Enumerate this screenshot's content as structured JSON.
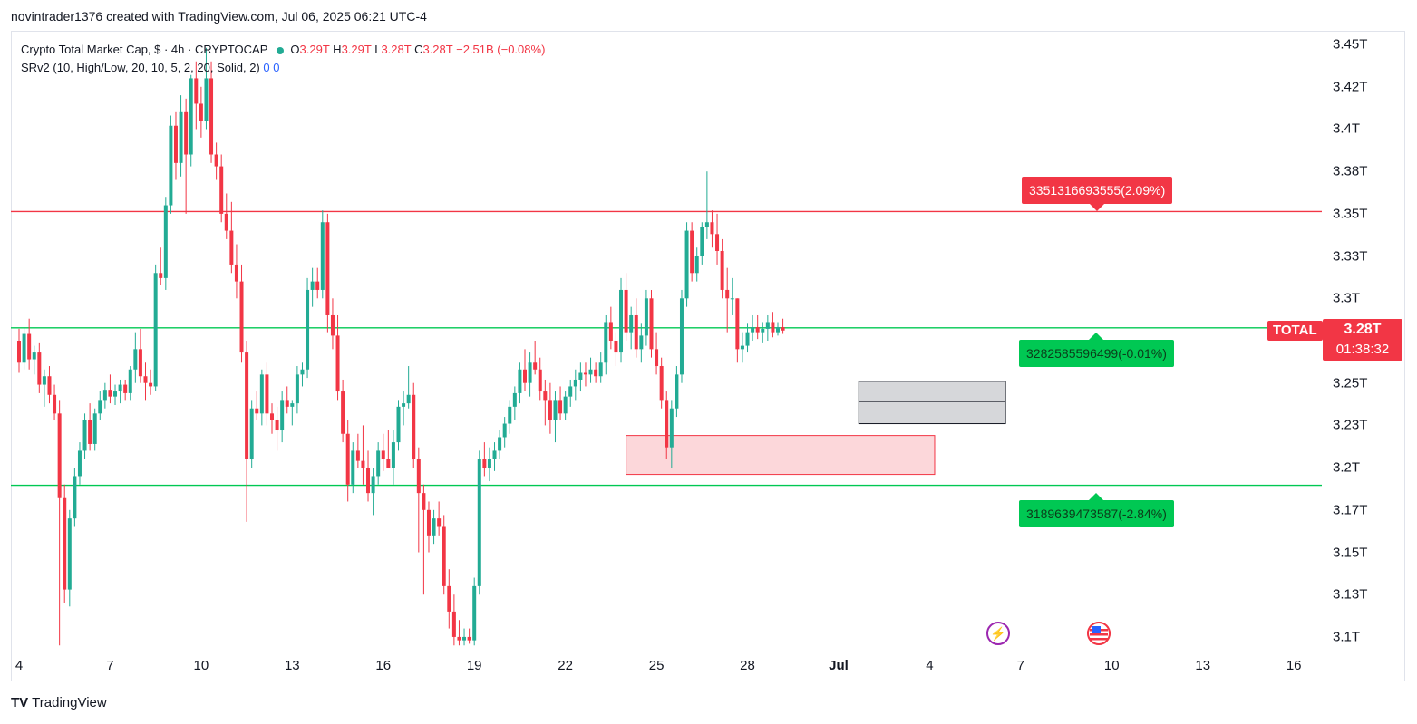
{
  "header": {
    "caption": "novintrader1376 created with TradingView.com, Jul 06, 2025 06:21 UTC-4"
  },
  "legend": {
    "symbol": "Crypto Total Market Cap, $ · 4h · CRYPTOCAP",
    "o_label": "O",
    "o_value": "3.29T",
    "h_label": "H",
    "h_value": "3.29T",
    "l_label": "L",
    "l_value": "3.28T",
    "c_label": "C",
    "c_value": "3.28T",
    "change": "−2.51B (−0.08%)",
    "indicator": "SRv2 (10, High/Low, 20, 10, 5, 2, 20, Solid, 2)",
    "indicator_v1": "0",
    "indicator_v2": "0"
  },
  "price_tag": {
    "symbol": "TOTAL",
    "value": "3.28T",
    "countdown": "01:38:32"
  },
  "levels": {
    "resistance_label": "3351316693555(2.09%)",
    "current_label": "3282585596499(-0.01%)",
    "support_label": "3189639473587(-2.84%)"
  },
  "footer": {
    "logo": "TV",
    "brand": "TradingView"
  },
  "icons": [
    "lightning-icon",
    "us-flag-icon"
  ],
  "colors": {
    "up": "#22ab94",
    "down": "#f23645",
    "resistance": "#f23645",
    "support": "#00c853"
  },
  "chart_data": {
    "type": "candlestick",
    "title": "Crypto Total Market Cap, $ · 4h · CRYPTOCAP",
    "y_unit": "T",
    "ylim": [
      3.093,
      3.457
    ],
    "y_ticks": [
      "3.45T",
      "3.42T",
      "3.4T",
      "3.38T",
      "3.35T",
      "3.33T",
      "3.3T",
      "3.28T",
      "3.25T",
      "3.23T",
      "3.2T",
      "3.17T",
      "3.15T",
      "3.13T",
      "3.1T"
    ],
    "y_tick_values": [
      3.45,
      3.425,
      3.4,
      3.375,
      3.35,
      3.325,
      3.3,
      3.275,
      3.25,
      3.225,
      3.2,
      3.175,
      3.15,
      3.125,
      3.1
    ],
    "x_ticks": [
      "4",
      "7",
      "10",
      "13",
      "16",
      "19",
      "22",
      "25",
      "28",
      "Jul",
      "4",
      "7",
      "10",
      "13",
      "16"
    ],
    "x_tick_bars": [
      0,
      18,
      36,
      54,
      72,
      90,
      108,
      126,
      144,
      162,
      180,
      198,
      216,
      234,
      252
    ],
    "horizontal_levels": [
      {
        "value": 3.3513,
        "color": "red"
      },
      {
        "value": 3.2826,
        "color": "green"
      },
      {
        "value": 3.1896,
        "color": "green"
      }
    ],
    "zones": [
      {
        "color": "pink",
        "bar_start": 120,
        "bar_end": 181,
        "top": 3.219,
        "bottom": 3.196
      },
      {
        "color": "gray",
        "bar_start": 166,
        "bar_end": 195,
        "top": 3.251,
        "bottom": 3.226,
        "mid": 3.239
      }
    ],
    "candles": [
      [
        3.275,
        3.282,
        3.256,
        3.262
      ],
      [
        3.262,
        3.283,
        3.258,
        3.279
      ],
      [
        3.279,
        3.288,
        3.258,
        3.264
      ],
      [
        3.264,
        3.272,
        3.255,
        3.268
      ],
      [
        3.268,
        3.274,
        3.244,
        3.249
      ],
      [
        3.249,
        3.258,
        3.236,
        3.254
      ],
      [
        3.254,
        3.26,
        3.238,
        3.243
      ],
      [
        3.243,
        3.249,
        3.228,
        3.232
      ],
      [
        3.232,
        3.24,
        3.095,
        3.182
      ],
      [
        3.182,
        3.19,
        3.12,
        3.128
      ],
      [
        3.128,
        3.175,
        3.118,
        3.17
      ],
      [
        3.17,
        3.2,
        3.165,
        3.195
      ],
      [
        3.195,
        3.215,
        3.19,
        3.21
      ],
      [
        3.21,
        3.232,
        3.205,
        3.228
      ],
      [
        3.228,
        3.238,
        3.21,
        3.214
      ],
      [
        3.214,
        3.235,
        3.21,
        3.232
      ],
      [
        3.232,
        3.245,
        3.228,
        3.24
      ],
      [
        3.24,
        3.25,
        3.235,
        3.246
      ],
      [
        3.246,
        3.255,
        3.238,
        3.242
      ],
      [
        3.242,
        3.249,
        3.237,
        3.245
      ],
      [
        3.245,
        3.252,
        3.238,
        3.249
      ],
      [
        3.249,
        3.252,
        3.24,
        3.244
      ],
      [
        3.244,
        3.26,
        3.24,
        3.258
      ],
      [
        3.258,
        3.28,
        3.25,
        3.27
      ],
      [
        3.27,
        3.282,
        3.25,
        3.254
      ],
      [
        3.254,
        3.262,
        3.24,
        3.25
      ],
      [
        3.25,
        3.258,
        3.243,
        3.248
      ],
      [
        3.248,
        3.32,
        3.245,
        3.315
      ],
      [
        3.315,
        3.33,
        3.308,
        3.312
      ],
      [
        3.312,
        3.36,
        3.305,
        3.355
      ],
      [
        3.355,
        3.408,
        3.35,
        3.402
      ],
      [
        3.402,
        3.41,
        3.37,
        3.38
      ],
      [
        3.38,
        3.42,
        3.372,
        3.41
      ],
      [
        3.41,
        3.418,
        3.35,
        3.385
      ],
      [
        3.385,
        3.432,
        3.378,
        3.43
      ],
      [
        3.43,
        3.44,
        3.4,
        3.415
      ],
      [
        3.415,
        3.425,
        3.395,
        3.405
      ],
      [
        3.405,
        3.448,
        3.4,
        3.43
      ],
      [
        3.43,
        3.44,
        3.38,
        3.385
      ],
      [
        3.385,
        3.392,
        3.37,
        3.378
      ],
      [
        3.378,
        3.385,
        3.345,
        3.35
      ],
      [
        3.35,
        3.362,
        3.335,
        3.34
      ],
      [
        3.34,
        3.357,
        3.315,
        3.32
      ],
      [
        3.32,
        3.332,
        3.3,
        3.31
      ],
      [
        3.31,
        3.32,
        3.262,
        3.268
      ],
      [
        3.268,
        3.275,
        3.168,
        3.205
      ],
      [
        3.205,
        3.24,
        3.2,
        3.235
      ],
      [
        3.235,
        3.245,
        3.228,
        3.232
      ],
      [
        3.232,
        3.258,
        3.225,
        3.255
      ],
      [
        3.255,
        3.262,
        3.225,
        3.232
      ],
      [
        3.232,
        3.238,
        3.22,
        3.228
      ],
      [
        3.228,
        3.236,
        3.21,
        3.222
      ],
      [
        3.222,
        3.245,
        3.215,
        3.24
      ],
      [
        3.24,
        3.248,
        3.232,
        3.236
      ],
      [
        3.236,
        3.24,
        3.225,
        3.238
      ],
      [
        3.238,
        3.26,
        3.232,
        3.255
      ],
      [
        3.255,
        3.262,
        3.248,
        3.258
      ],
      [
        3.258,
        3.312,
        3.253,
        3.305
      ],
      [
        3.305,
        3.318,
        3.295,
        3.31
      ],
      [
        3.31,
        3.318,
        3.3,
        3.305
      ],
      [
        3.305,
        3.352,
        3.3,
        3.345
      ],
      [
        3.345,
        3.35,
        3.28,
        3.29
      ],
      [
        3.29,
        3.3,
        3.27,
        3.278
      ],
      [
        3.278,
        3.29,
        3.24,
        3.245
      ],
      [
        3.245,
        3.252,
        3.215,
        3.22
      ],
      [
        3.22,
        3.228,
        3.18,
        3.19
      ],
      [
        3.19,
        3.215,
        3.185,
        3.21
      ],
      [
        3.21,
        3.22,
        3.2,
        3.204
      ],
      [
        3.204,
        3.225,
        3.19,
        3.2
      ],
      [
        3.2,
        3.21,
        3.18,
        3.185
      ],
      [
        3.185,
        3.2,
        3.172,
        3.195
      ],
      [
        3.195,
        3.215,
        3.19,
        3.21
      ],
      [
        3.21,
        3.22,
        3.198,
        3.205
      ],
      [
        3.205,
        3.222,
        3.2,
        3.2
      ],
      [
        3.2,
        3.222,
        3.19,
        3.215
      ],
      [
        3.215,
        3.24,
        3.21,
        3.236
      ],
      [
        3.236,
        3.245,
        3.225,
        3.238
      ],
      [
        3.238,
        3.26,
        3.235,
        3.243
      ],
      [
        3.243,
        3.25,
        3.2,
        3.205
      ],
      [
        3.205,
        3.212,
        3.15,
        3.185
      ],
      [
        3.185,
        3.19,
        3.125,
        3.175
      ],
      [
        3.175,
        3.18,
        3.15,
        3.16
      ],
      [
        3.16,
        3.175,
        3.155,
        3.17
      ],
      [
        3.17,
        3.18,
        3.16,
        3.165
      ],
      [
        3.165,
        3.172,
        3.125,
        3.13
      ],
      [
        3.13,
        3.14,
        3.105,
        3.115
      ],
      [
        3.115,
        3.125,
        3.095,
        3.1
      ],
      [
        3.1,
        3.11,
        3.095,
        3.098
      ],
      [
        3.098,
        3.105,
        3.095,
        3.1
      ],
      [
        3.1,
        3.105,
        3.096,
        3.098
      ],
      [
        3.098,
        3.135,
        3.095,
        3.13
      ],
      [
        3.13,
        3.21,
        3.125,
        3.205
      ],
      [
        3.205,
        3.215,
        3.195,
        3.2
      ],
      [
        3.2,
        3.212,
        3.192,
        3.205
      ],
      [
        3.205,
        3.215,
        3.198,
        3.21
      ],
      [
        3.21,
        3.222,
        3.205,
        3.218
      ],
      [
        3.218,
        3.23,
        3.212,
        3.226
      ],
      [
        3.226,
        3.24,
        3.22,
        3.236
      ],
      [
        3.236,
        3.248,
        3.228,
        3.244
      ],
      [
        3.244,
        3.262,
        3.238,
        3.258
      ],
      [
        3.258,
        3.27,
        3.245,
        3.25
      ],
      [
        3.25,
        3.268,
        3.242,
        3.262
      ],
      [
        3.262,
        3.275,
        3.255,
        3.258
      ],
      [
        3.258,
        3.265,
        3.24,
        3.245
      ],
      [
        3.245,
        3.252,
        3.225,
        3.24
      ],
      [
        3.24,
        3.25,
        3.22,
        3.228
      ],
      [
        3.228,
        3.245,
        3.215,
        3.24
      ],
      [
        3.24,
        3.248,
        3.228,
        3.232
      ],
      [
        3.232,
        3.245,
        3.228,
        3.242
      ],
      [
        3.242,
        3.252,
        3.236,
        3.248
      ],
      [
        3.248,
        3.258,
        3.24,
        3.252
      ],
      [
        3.252,
        3.262,
        3.245,
        3.256
      ],
      [
        3.256,
        3.262,
        3.248,
        3.255
      ],
      [
        3.255,
        3.265,
        3.25,
        3.258
      ],
      [
        3.258,
        3.262,
        3.25,
        3.254
      ],
      [
        3.254,
        3.268,
        3.25,
        3.262
      ],
      [
        3.262,
        3.29,
        3.255,
        3.286
      ],
      [
        3.286,
        3.295,
        3.27,
        3.275
      ],
      [
        3.275,
        3.28,
        3.26,
        3.268
      ],
      [
        3.268,
        3.312,
        3.262,
        3.305
      ],
      [
        3.305,
        3.315,
        3.275,
        3.28
      ],
      [
        3.28,
        3.295,
        3.27,
        3.29
      ],
      [
        3.29,
        3.3,
        3.265,
        3.27
      ],
      [
        3.27,
        3.285,
        3.262,
        3.278
      ],
      [
        3.278,
        3.305,
        3.272,
        3.3
      ],
      [
        3.3,
        3.305,
        3.265,
        3.27
      ],
      [
        3.27,
        3.28,
        3.255,
        3.26
      ],
      [
        3.26,
        3.265,
        3.235,
        3.24
      ],
      [
        3.24,
        3.245,
        3.205,
        3.212
      ],
      [
        3.212,
        3.24,
        3.2,
        3.235
      ],
      [
        3.235,
        3.26,
        3.23,
        3.255
      ],
      [
        3.255,
        3.305,
        3.25,
        3.3
      ],
      [
        3.3,
        3.345,
        3.295,
        3.34
      ],
      [
        3.34,
        3.345,
        3.31,
        3.315
      ],
      [
        3.315,
        3.33,
        3.31,
        3.325
      ],
      [
        3.325,
        3.345,
        3.32,
        3.342
      ],
      [
        3.342,
        3.375,
        3.335,
        3.345
      ],
      [
        3.345,
        3.352,
        3.33,
        3.338
      ],
      [
        3.338,
        3.35,
        3.32,
        3.328
      ],
      [
        3.328,
        3.335,
        3.3,
        3.305
      ],
      [
        3.305,
        3.318,
        3.28,
        3.3
      ],
      [
        3.3,
        3.312,
        3.29,
        3.3
      ],
      [
        3.3,
        3.3,
        3.262,
        3.27
      ],
      [
        3.27,
        3.28,
        3.262,
        3.272
      ],
      [
        3.272,
        3.285,
        3.268,
        3.28
      ],
      [
        3.28,
        3.29,
        3.275,
        3.283
      ],
      [
        3.283,
        3.29,
        3.276,
        3.28
      ],
      [
        3.28,
        3.286,
        3.274,
        3.282
      ],
      [
        3.282,
        3.29,
        3.275,
        3.286
      ],
      [
        3.286,
        3.292,
        3.277,
        3.28
      ],
      [
        3.28,
        3.286,
        3.278,
        3.283
      ],
      [
        3.283,
        3.288,
        3.279,
        3.281
      ]
    ]
  }
}
